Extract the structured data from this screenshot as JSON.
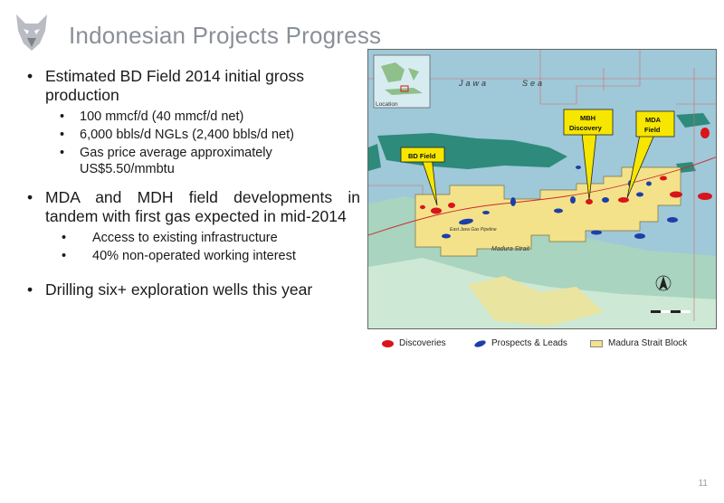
{
  "slide": {
    "title": "Indonesian Projects Progress",
    "page_number": "11",
    "logo_icon": "wolf-head-icon"
  },
  "bullets": [
    {
      "text": "Estimated BD Field 2014 initial gross production",
      "sub": [
        "100 mmcf/d (40 mmcf/d net)",
        "6,000 bbls/d NGLs (2,400 bbls/d net)",
        "Gas price average approximately US$5.50/mmbtu"
      ]
    },
    {
      "text": "MDA and MDH field developments in tandem with first gas expected in mid-2014",
      "sub": [
        "Access to existing infrastructure",
        "40% non-operated working interest"
      ]
    },
    {
      "text": "Drilling six+ exploration wells this year",
      "sub": []
    }
  ],
  "map": {
    "callouts": {
      "bd_field": "BD Field",
      "mbh_line1": "MBH",
      "mbh_line2": "Discovery",
      "mda_line1": "MDA",
      "mda_line2": "Field"
    },
    "inset_label": "Location",
    "sea_word_1": "Jawa",
    "sea_word_2": "Sea",
    "madura_label": "Madura Strait",
    "pipeline_label": "East Java Gas Pipeline",
    "colors": {
      "sea": "#9fc8d8",
      "land": "#2e8a7a",
      "block": "#f4e28a",
      "discovery": "#d8151a",
      "prospect": "#1c3fa8",
      "callout": "#f6e600"
    }
  },
  "legend": {
    "discoveries": "Discoveries",
    "prospects": "Prospects & Leads",
    "block": "Madura Strait Block"
  }
}
